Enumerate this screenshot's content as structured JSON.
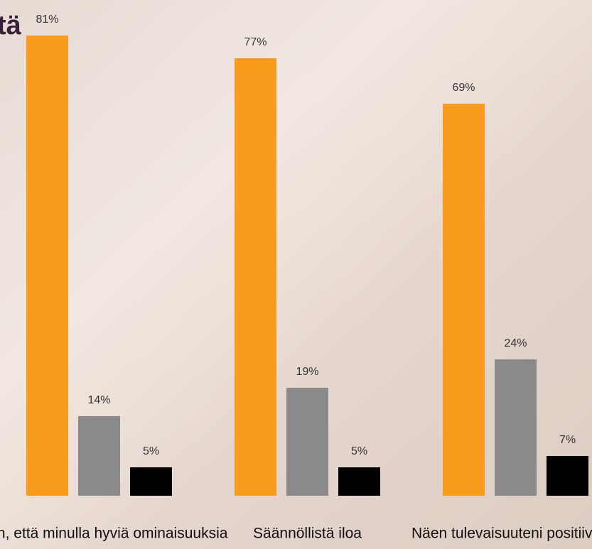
{
  "chart_data": {
    "type": "bar",
    "title": "tä",
    "categories": [
      "Koen, että minulla hyviä ominaisuuksia",
      "Säännöllistä iloa",
      "Näen tulevaisuuteni positiivisen"
    ],
    "series": [
      {
        "color": "#f99b1c",
        "values": [
          81,
          77,
          69
        ],
        "value_labels": [
          "81%",
          "77%",
          "69%"
        ]
      },
      {
        "color": "#8a8a8a",
        "values": [
          14,
          19,
          24
        ],
        "value_labels": [
          "14%",
          "19%",
          "24%"
        ]
      },
      {
        "color": "#000000",
        "values": [
          5,
          5,
          7
        ],
        "value_labels": [
          "5%",
          "5%",
          "7%"
        ]
      }
    ],
    "ylim": [
      0,
      85
    ]
  }
}
